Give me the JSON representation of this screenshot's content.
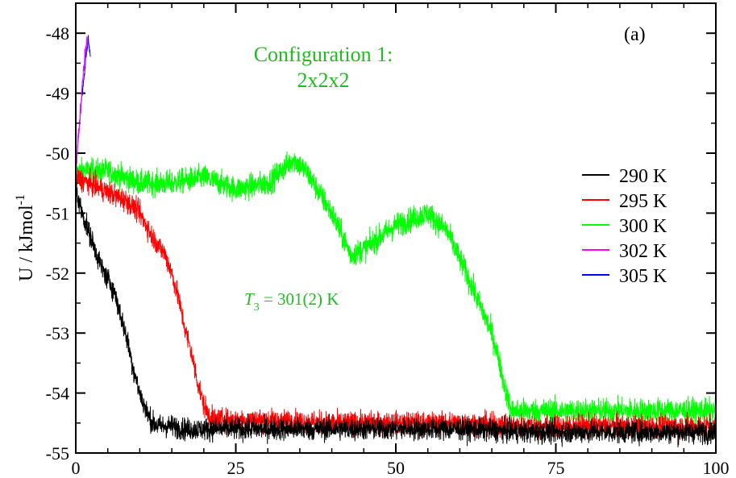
{
  "chart_data": {
    "type": "line",
    "panel_label": "(a)",
    "ylabel_main": "U / kJmol",
    "ylabel_sup": "-1",
    "xlabel": "",
    "xlim": [
      0,
      100
    ],
    "ylim": [
      -55,
      -47.5
    ],
    "xticks": [
      "0",
      "25",
      "50",
      "75",
      "100"
    ],
    "yticks": [
      "-55",
      "-54",
      "-53",
      "-52",
      "-51",
      "-50",
      "-49",
      "-48"
    ],
    "annotations": {
      "config_line1": "Configuration 1:",
      "config_line2": "2x2x2",
      "t3_symbol": "T",
      "t3_sub": "3",
      "t3_value": " = 301(2) K"
    },
    "legend_position": "right",
    "series": [
      {
        "name": "290 K",
        "color": "#000000",
        "noise": 0.18,
        "x": [
          0,
          1,
          2,
          3,
          4,
          5,
          6,
          7,
          8,
          9,
          10,
          11,
          12,
          13,
          15,
          17,
          20,
          25,
          30,
          40,
          50,
          60,
          70,
          80,
          90,
          100
        ],
        "y": [
          -50.6,
          -51.0,
          -51.3,
          -51.6,
          -51.9,
          -52.1,
          -52.3,
          -52.7,
          -53.1,
          -53.6,
          -54.0,
          -54.3,
          -54.5,
          -54.55,
          -54.55,
          -54.6,
          -54.6,
          -54.6,
          -54.6,
          -54.6,
          -54.6,
          -54.6,
          -54.65,
          -54.65,
          -54.65,
          -54.65
        ]
      },
      {
        "name": "295 K",
        "color": "#ff0000",
        "noise": 0.18,
        "x": [
          0,
          2,
          4,
          6,
          8,
          10,
          12,
          14,
          15,
          16,
          17,
          18,
          19,
          20,
          21,
          22,
          25,
          30,
          40,
          50,
          60,
          70,
          80,
          90,
          100
        ],
        "y": [
          -50.4,
          -50.5,
          -50.6,
          -50.7,
          -50.8,
          -51.0,
          -51.4,
          -51.7,
          -52.0,
          -52.4,
          -52.9,
          -53.3,
          -53.8,
          -54.2,
          -54.4,
          -54.45,
          -54.45,
          -54.45,
          -54.5,
          -54.5,
          -54.5,
          -54.55,
          -54.55,
          -54.55,
          -54.55
        ]
      },
      {
        "name": "300 K",
        "color": "#00ff00",
        "noise": 0.2,
        "x": [
          0,
          5,
          10,
          15,
          20,
          25,
          30,
          34,
          36,
          40,
          43,
          45,
          50,
          55,
          58,
          61,
          63,
          65,
          66,
          67,
          68,
          69,
          70,
          75,
          80,
          90,
          100
        ],
        "y": [
          -50.3,
          -50.3,
          -50.5,
          -50.5,
          -50.4,
          -50.6,
          -50.5,
          -50.1,
          -50.3,
          -51.0,
          -51.7,
          -51.6,
          -51.2,
          -51.0,
          -51.3,
          -52.0,
          -52.5,
          -53.0,
          -53.4,
          -53.9,
          -54.3,
          -54.3,
          -54.3,
          -54.3,
          -54.3,
          -54.3,
          -54.3
        ]
      },
      {
        "name": "302 K",
        "color": "#ff00ff",
        "noise": 0.12,
        "x": [
          0,
          0.3,
          0.6,
          0.9,
          1.2,
          1.5,
          1.8
        ],
        "y": [
          -50.3,
          -49.9,
          -49.5,
          -49.0,
          -48.6,
          -48.3,
          -48.1
        ]
      },
      {
        "name": "305 K",
        "color": "#0000ff",
        "noise": 0.1,
        "x": [
          0,
          0.4,
          0.8,
          1.2,
          1.6,
          2.0,
          2.3
        ],
        "y": [
          -50.2,
          -49.7,
          -49.2,
          -48.8,
          -48.4,
          -48.1,
          -48.4
        ]
      }
    ]
  }
}
